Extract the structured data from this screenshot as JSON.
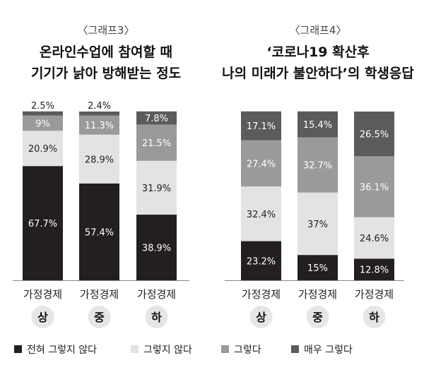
{
  "chart_data": [
    {
      "type": "bar",
      "stacked": true,
      "graph_label": "〈그래프3〉",
      "title_lines": [
        "온라인수업에 참여할 때",
        "기기가 낡아 방해받는 정도"
      ],
      "categories": [
        "상",
        "중",
        "하"
      ],
      "category_prefix": "가정경제",
      "ylim": [
        0,
        100
      ],
      "series": [
        {
          "name": "전혀 그렇지 않다",
          "values": [
            67.7,
            57.4,
            38.9
          ],
          "labels": [
            "67.7%",
            "57.4%",
            "38.9%"
          ]
        },
        {
          "name": "그렇지 않다",
          "values": [
            20.9,
            28.9,
            31.9
          ],
          "labels": [
            "20.9%",
            "28.9%",
            "31.9%"
          ]
        },
        {
          "name": "그렇다",
          "values": [
            9,
            11.3,
            21.5
          ],
          "labels": [
            "9%",
            "11.3%",
            "21.5%"
          ]
        },
        {
          "name": "매우 그렇다",
          "values": [
            2.5,
            2.4,
            7.8
          ],
          "labels": [
            "2.5%",
            "2.4%",
            "7.8%"
          ]
        }
      ]
    },
    {
      "type": "bar",
      "stacked": true,
      "graph_label": "〈그래프4〉",
      "title_lines": [
        "‘코로나19 확산후",
        "나의 미래가 불안하다’의 학생응답"
      ],
      "categories": [
        "상",
        "중",
        "하"
      ],
      "category_prefix": "가정경제",
      "ylim": [
        0,
        100
      ],
      "series": [
        {
          "name": "전혀 그렇지 않다",
          "values": [
            23.2,
            15,
            12.8
          ],
          "labels": [
            "23.2%",
            "15%",
            "12.8%"
          ]
        },
        {
          "name": "그렇지 않다",
          "values": [
            32.4,
            37,
            24.6
          ],
          "labels": [
            "32.4%",
            "37%",
            "24.6%"
          ]
        },
        {
          "name": "그렇다",
          "values": [
            27.4,
            32.7,
            36.1
          ],
          "labels": [
            "27.4%",
            "32.7%",
            "36.1%"
          ]
        },
        {
          "name": "매우 그렇다",
          "values": [
            17.1,
            15.4,
            26.5
          ],
          "labels": [
            "17.1%",
            "15.4%",
            "26.5%"
          ]
        }
      ]
    }
  ],
  "legend": [
    {
      "label": "전혀 그렇지 않다",
      "color": "#231f20"
    },
    {
      "label": "그렇지 않다",
      "color": "#e3e3e3"
    },
    {
      "label": "그렇다",
      "color": "#9a9a9a"
    },
    {
      "label": "매우 그렇다",
      "color": "#5b5b5b"
    }
  ],
  "colors": {
    "seg_dark": "#231f20",
    "seg_light": "#e3e3e3",
    "seg_mid": "#9a9a9a",
    "seg_darkgray": "#5b5b5b",
    "axis": "#888888",
    "circle": "#e6e6e6"
  }
}
